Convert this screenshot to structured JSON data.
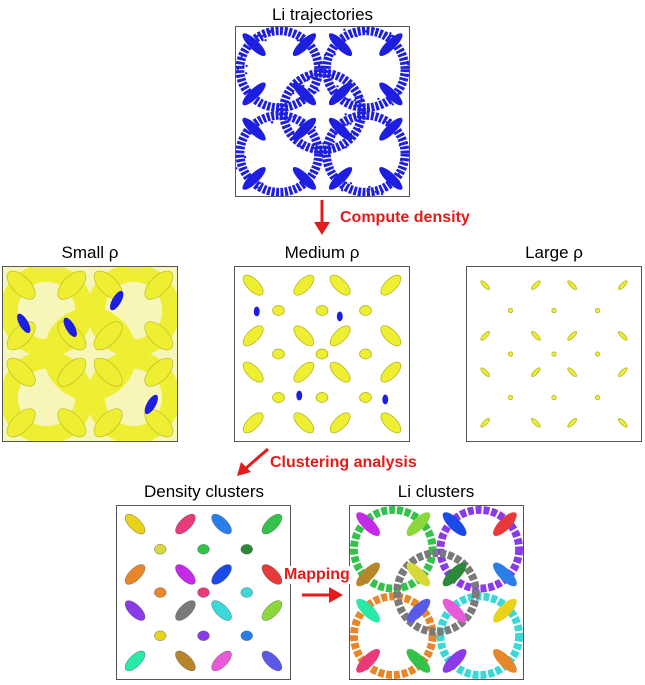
{
  "labels": {
    "li_trajectories": "Li trajectories",
    "compute_density": "Compute density",
    "small_rho": "Small ρ",
    "medium_rho": "Medium ρ",
    "large_rho": "Large ρ",
    "clustering_analysis": "Clustering analysis",
    "density_clusters": "Density clusters",
    "li_clusters": "Li clusters",
    "mapping": "Mapping"
  },
  "colors": {
    "trajectory": "#1e1ee0",
    "density": "#eeee33",
    "density_edge": "#b5b520",
    "arrow": "#e31b1b",
    "cluster_palette": [
      "#e8d21a",
      "#2a7ee8",
      "#e83a7c",
      "#33c24a",
      "#8a3ae8",
      "#e8862a",
      "#3ad8d8",
      "#7a7a7a",
      "#c42ae8",
      "#1a4ae8",
      "#8ad83a",
      "#e83a3a",
      "#2ae8a8",
      "#b8862a",
      "#e85ad8",
      "#5a5ae8",
      "#d8d83a",
      "#2a8a3a"
    ]
  }
}
